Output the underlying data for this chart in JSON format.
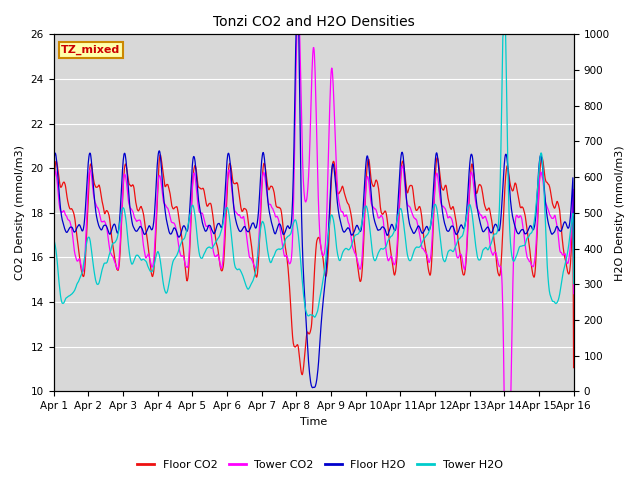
{
  "title": "Tonzi CO2 and H2O Densities",
  "xlabel": "Time",
  "ylabel_left": "CO2 Density (mmol/m3)",
  "ylabel_right": "H2O Density (mmol/m3)",
  "label_box": "TZ_mixed",
  "co2_ylim": [
    10,
    26
  ],
  "h2o_ylim": [
    0,
    1000
  ],
  "colors": {
    "floor_co2": "#ee1111",
    "tower_co2": "#ff00ff",
    "floor_h2o": "#0000cc",
    "tower_h2o": "#00cccc"
  },
  "legend_labels": [
    "Floor CO2",
    "Tower CO2",
    "Floor H2O",
    "Tower H2O"
  ],
  "x_tick_labels": [
    "Apr 1",
    "Apr 2",
    "Apr 3",
    "Apr 4",
    "Apr 5",
    "Apr 6",
    "Apr 7",
    "Apr 8",
    "Apr 9",
    "Apr 10",
    "Apr 11",
    "Apr 12",
    "Apr 13",
    "Apr 14",
    "Apr 15",
    "Apr 16"
  ],
  "background_color": "#d8d8d8",
  "n_points": 1500
}
